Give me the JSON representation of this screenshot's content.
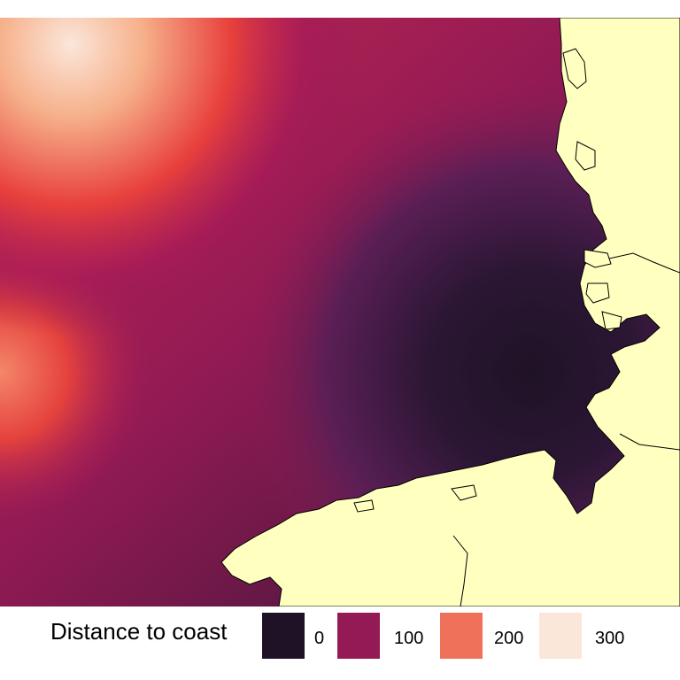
{
  "legend": {
    "title": "Distance to coast",
    "items": [
      {
        "label": "0",
        "color": "#1f1226"
      },
      {
        "label": "100",
        "color": "#931a54"
      },
      {
        "label": "200",
        "color": "#f0715a"
      },
      {
        "label": "300",
        "color": "#fbe6da"
      }
    ]
  },
  "colors": {
    "land": "#ffffc0",
    "coastline": "#000000",
    "sea_near": "#1f1226",
    "sea_mid": "#5a1f55",
    "sea_far": "#931a54",
    "sea_red": "#e8403c",
    "sea_light": "#f6a27e",
    "sea_max": "#fbe6da"
  }
}
